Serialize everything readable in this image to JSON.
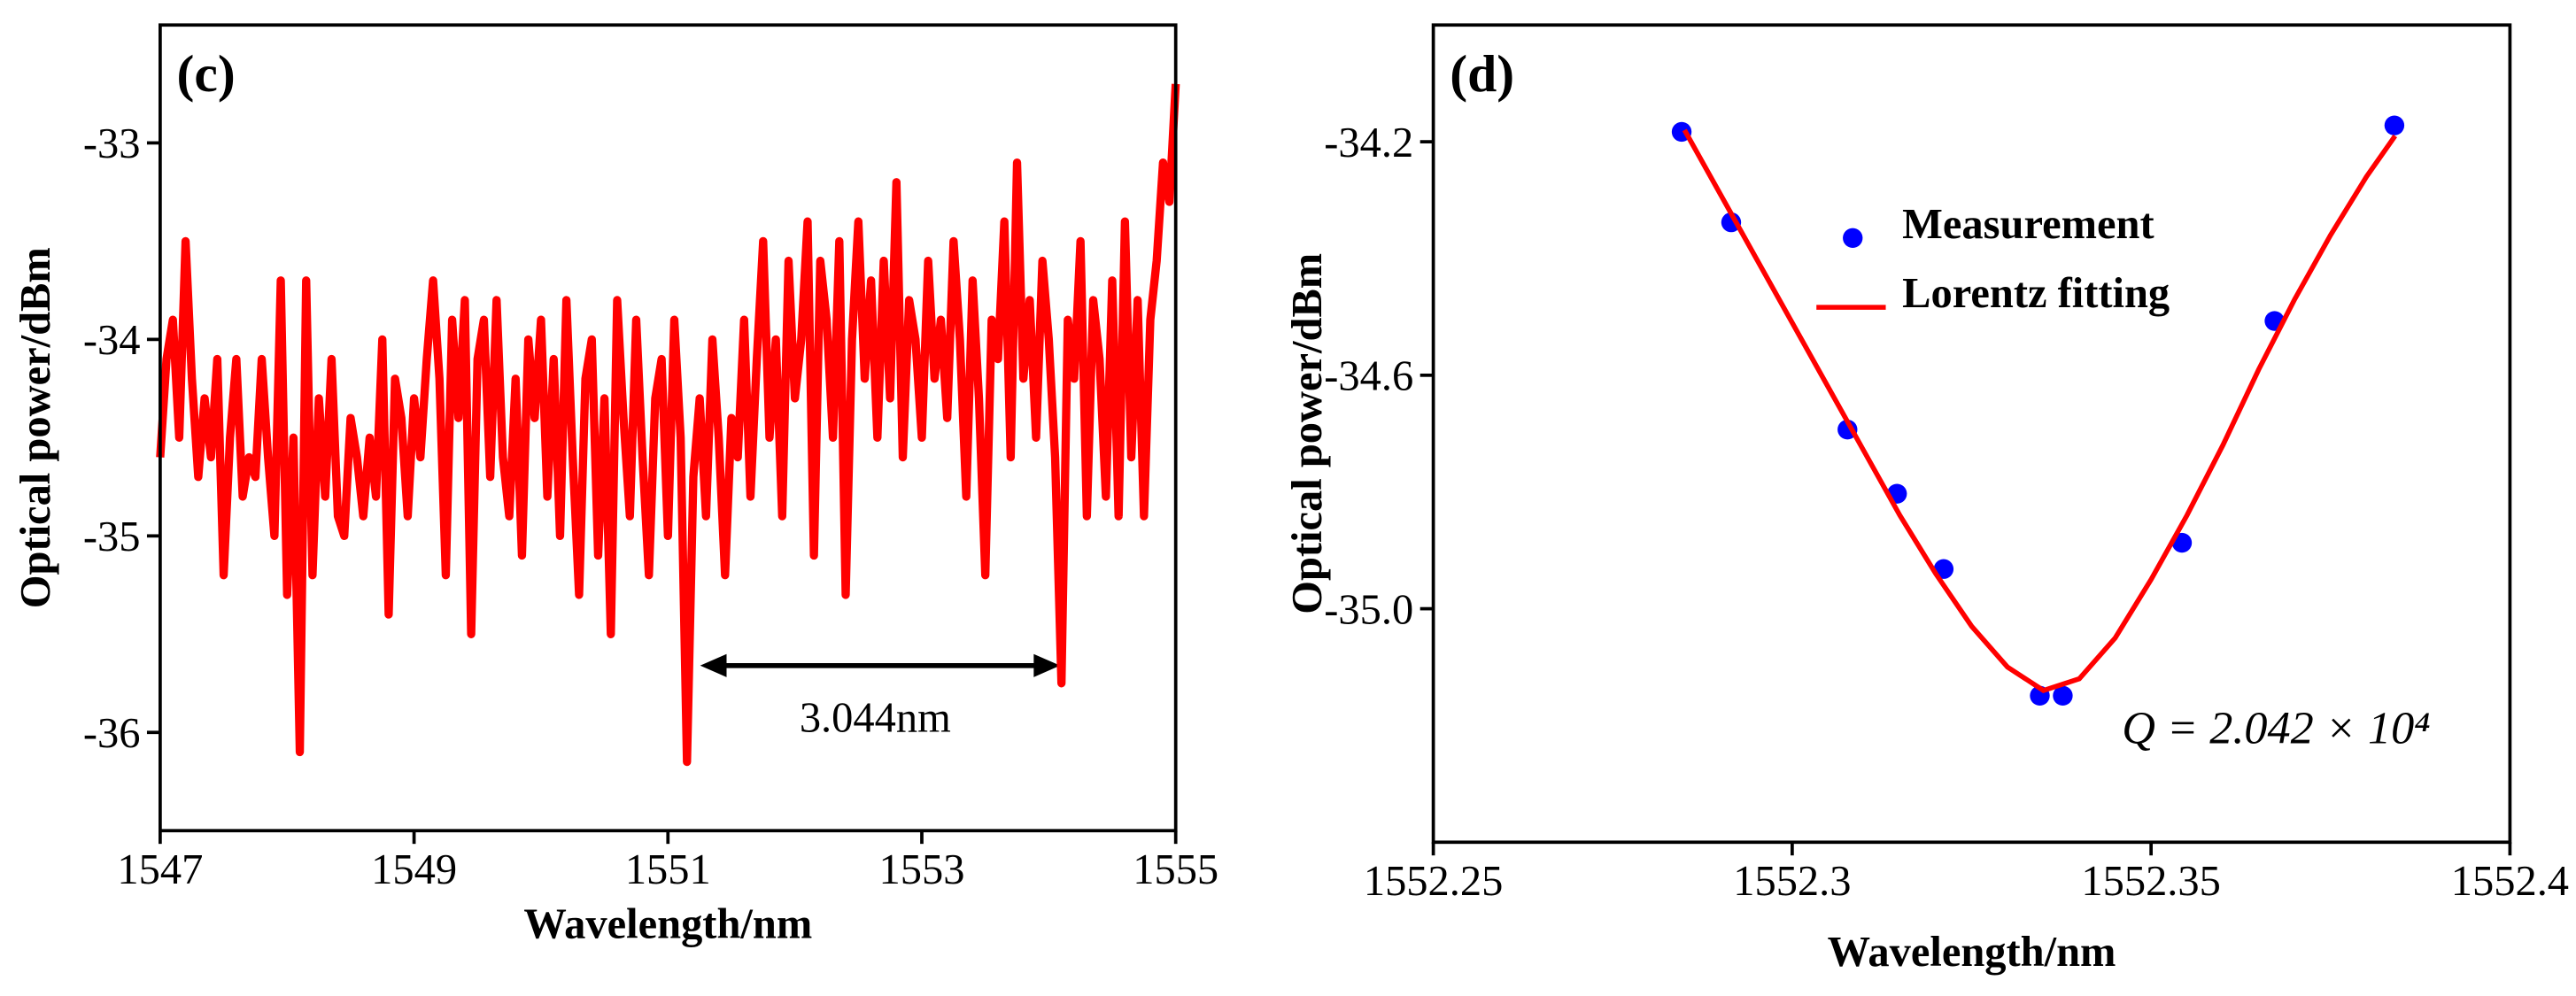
{
  "chart_data": [
    {
      "type": "line",
      "label": "(c)",
      "xlabel": "Wavelength/nm",
      "ylabel": "Optical power/dBm",
      "color": "#ff0000",
      "xlim": [
        1547,
        1555
      ],
      "ylim": [
        -36.5,
        -32.4
      ],
      "xticks": [
        1547,
        1549,
        1551,
        1553,
        1555
      ],
      "yticks": [
        -36,
        -35,
        -34,
        -33
      ],
      "annotations": [
        "3.044nm"
      ],
      "x": [
        1547,
        1547.05,
        1547.1,
        1547.15,
        1547.2,
        1547.25,
        1547.3,
        1547.35,
        1547.4,
        1547.45,
        1547.5,
        1547.55,
        1547.6,
        1547.65,
        1547.7,
        1547.75,
        1547.8,
        1547.85,
        1547.9,
        1547.95,
        1548,
        1548.05,
        1548.1,
        1548.15,
        1548.2,
        1548.25,
        1548.3,
        1548.35,
        1548.4,
        1548.45,
        1548.5,
        1548.55,
        1548.6,
        1548.65,
        1548.7,
        1548.75,
        1548.8,
        1548.85,
        1548.9,
        1548.95,
        1549,
        1549.05,
        1549.1,
        1549.15,
        1549.2,
        1549.25,
        1549.3,
        1549.35,
        1549.4,
        1549.45,
        1549.5,
        1549.55,
        1549.6,
        1549.65,
        1549.7,
        1549.75,
        1549.8,
        1549.85,
        1549.9,
        1549.95,
        1550,
        1550.05,
        1550.1,
        1550.15,
        1550.2,
        1550.25,
        1550.3,
        1550.35,
        1550.4,
        1550.45,
        1550.5,
        1550.55,
        1550.6,
        1550.65,
        1550.7,
        1550.75,
        1550.8,
        1550.85,
        1550.9,
        1550.95,
        1551,
        1551.05,
        1551.1,
        1551.15,
        1551.2,
        1551.25,
        1551.3,
        1551.35,
        1551.4,
        1551.45,
        1551.5,
        1551.55,
        1551.6,
        1551.65,
        1551.7,
        1551.75,
        1551.8,
        1551.85,
        1551.9,
        1551.95,
        1552,
        1552.05,
        1552.1,
        1552.15,
        1552.2,
        1552.25,
        1552.3,
        1552.35,
        1552.4,
        1552.45,
        1552.5,
        1552.55,
        1552.6,
        1552.65,
        1552.7,
        1552.75,
        1552.8,
        1552.85,
        1552.9,
        1552.95,
        1553,
        1553.05,
        1553.1,
        1553.15,
        1553.2,
        1553.25,
        1553.3,
        1553.35,
        1553.4,
        1553.45,
        1553.5,
        1553.55,
        1553.6,
        1553.65,
        1553.7,
        1553.75,
        1553.8,
        1553.85,
        1553.9,
        1553.95,
        1554,
        1554.05,
        1554.1,
        1554.15,
        1554.2,
        1554.25,
        1554.3,
        1554.35,
        1554.4,
        1554.45,
        1554.5,
        1554.55,
        1554.6,
        1554.65,
        1554.7,
        1554.75,
        1554.8,
        1554.85,
        1554.9,
        1554.95,
        1555
      ],
      "values": [
        -34.6,
        -34.1,
        -33.9,
        -34.5,
        -33.5,
        -34.2,
        -34.7,
        -34.3,
        -34.6,
        -34.1,
        -35.2,
        -34.5,
        -34.1,
        -34.8,
        -34.6,
        -34.7,
        -34.1,
        -34.6,
        -35.0,
        -33.7,
        -35.3,
        -34.5,
        -36.1,
        -33.7,
        -35.2,
        -34.3,
        -34.8,
        -34.1,
        -34.9,
        -35.0,
        -34.4,
        -34.6,
        -34.9,
        -34.5,
        -34.8,
        -34.0,
        -35.4,
        -34.2,
        -34.4,
        -34.9,
        -34.3,
        -34.6,
        -34.1,
        -33.7,
        -34.2,
        -35.2,
        -33.9,
        -34.4,
        -33.8,
        -35.5,
        -34.1,
        -33.9,
        -34.7,
        -33.8,
        -34.6,
        -34.9,
        -34.2,
        -35.1,
        -34.0,
        -34.4,
        -33.9,
        -34.8,
        -34.1,
        -35.0,
        -33.8,
        -34.6,
        -35.3,
        -34.2,
        -34.0,
        -35.1,
        -34.3,
        -35.5,
        -33.8,
        -34.4,
        -34.9,
        -33.9,
        -34.6,
        -35.2,
        -34.3,
        -34.1,
        -35.0,
        -33.9,
        -34.5,
        -36.15,
        -34.7,
        -34.3,
        -34.9,
        -34.0,
        -34.5,
        -35.2,
        -34.4,
        -34.6,
        -33.9,
        -34.8,
        -34.1,
        -33.5,
        -34.5,
        -34.0,
        -34.9,
        -33.6,
        -34.3,
        -34.0,
        -33.4,
        -35.1,
        -33.6,
        -33.9,
        -34.5,
        -33.5,
        -35.3,
        -34.0,
        -33.4,
        -34.2,
        -33.7,
        -34.5,
        -33.6,
        -34.3,
        -33.2,
        -34.6,
        -33.8,
        -34.0,
        -34.5,
        -33.6,
        -34.2,
        -33.9,
        -34.4,
        -33.5,
        -34.0,
        -34.8,
        -33.7,
        -34.3,
        -35.2,
        -33.9,
        -34.1,
        -33.4,
        -34.6,
        -33.1,
        -34.2,
        -33.8,
        -34.5,
        -33.6,
        -34.0,
        -34.6,
        -35.75,
        -33.9,
        -34.2,
        -33.5,
        -34.9,
        -33.8,
        -34.1,
        -34.8,
        -33.7,
        -34.9,
        -33.4,
        -34.6,
        -33.8,
        -34.9,
        -33.9,
        -33.6,
        -33.1,
        -33.3,
        -32.7
      ]
    },
    {
      "type": "scatter",
      "label": "(d)",
      "xlabel": "Wavelength/nm",
      "ylabel": "Optical power/dBm",
      "legend": "top",
      "xlim": [
        1552.25,
        1552.4
      ],
      "ylim": [
        -35.4,
        -34.0
      ],
      "xticks": [
        1552.25,
        1552.3,
        1552.35,
        1552.4
      ],
      "yticks": [
        -34.2,
        -34.6,
        {
          "value": -35,
          "label": "-35.0"
        }
      ],
      "annotations": [
        "Q = 2.042 × 10⁴"
      ],
      "series": [
        {
          "name": "Measurement",
          "mode": "markers",
          "color": "#0000ff",
          "x": [
            1552.2846,
            1552.2915,
            1552.3077,
            1552.3146,
            1552.3211,
            1552.3345,
            1552.3377,
            1552.3543,
            1552.3672,
            1552.3839
          ],
          "values": [
            -34.183,
            -34.338,
            -34.693,
            -34.803,
            -34.932,
            -35.149,
            -35.149,
            -34.887,
            -34.507,
            -34.172
          ]
        },
        {
          "name": "Lorentz fitting",
          "mode": "line",
          "color": "#ff0000",
          "x": [
            1552.285,
            1552.29,
            1552.295,
            1552.3,
            1552.305,
            1552.31,
            1552.315,
            1552.32,
            1552.325,
            1552.33,
            1552.335,
            1552.34,
            1552.345,
            1552.35,
            1552.355,
            1552.36,
            1552.365,
            1552.37,
            1552.375,
            1552.38,
            1552.384
          ],
          "values": [
            -34.18,
            -34.29,
            -34.4,
            -34.51,
            -34.62,
            -34.73,
            -34.84,
            -34.94,
            -35.03,
            -35.1,
            -35.14,
            -35.12,
            -35.05,
            -34.95,
            -34.84,
            -34.72,
            -34.59,
            -34.47,
            -34.36,
            -34.26,
            -34.19
          ]
        }
      ]
    }
  ]
}
